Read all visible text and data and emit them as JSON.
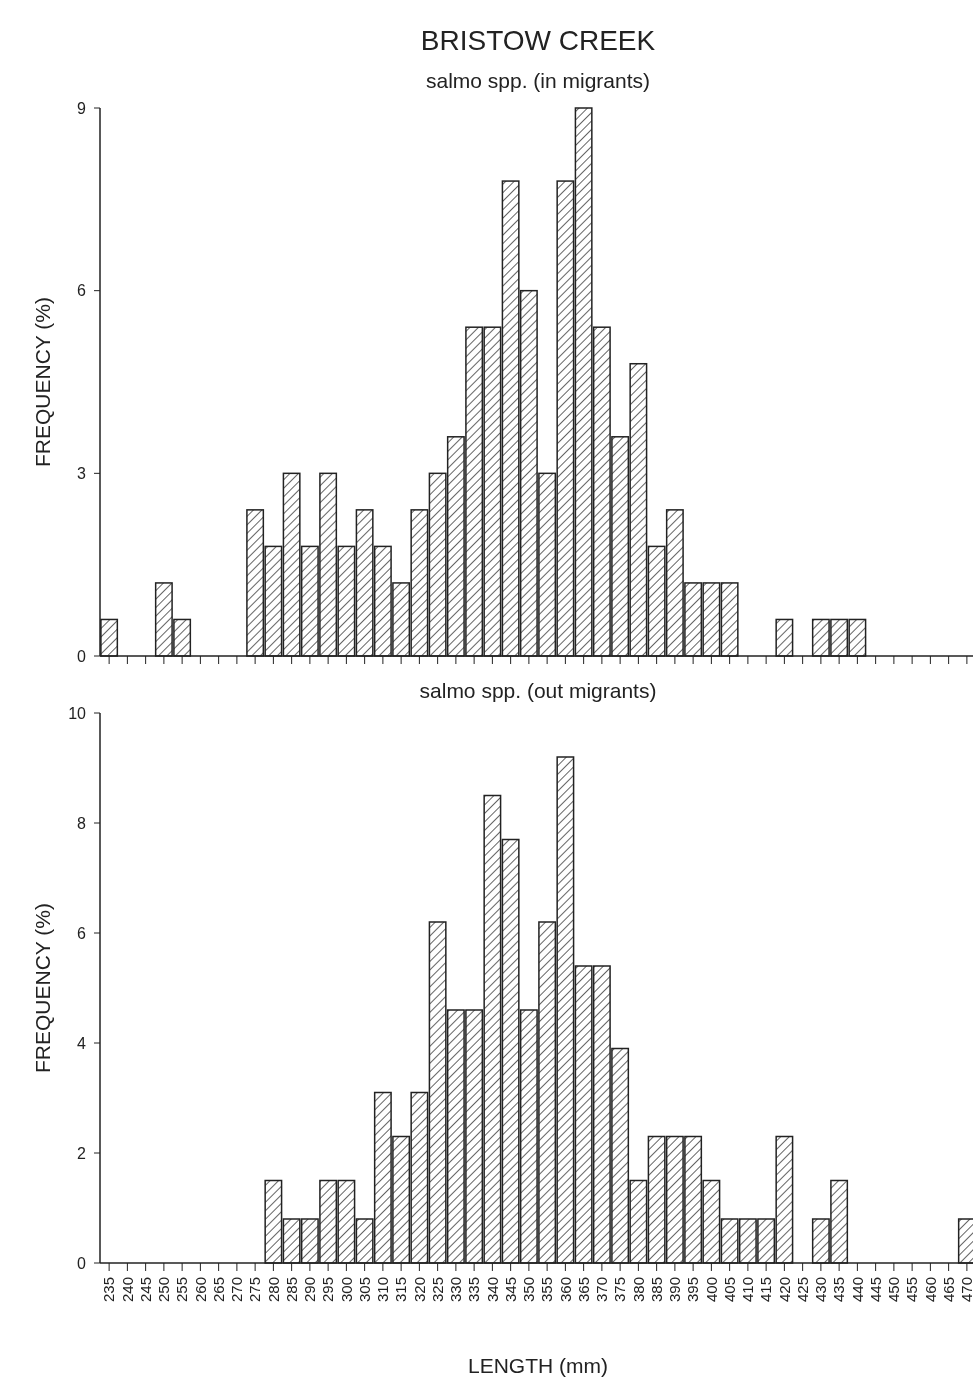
{
  "chart_data": [
    {
      "type": "bar",
      "title": "BRISTOW CREEK",
      "subtitle": "salmo spp. (in migrants)",
      "ylabel": "FREQUENCY (%)",
      "categories": [
        "235",
        "240",
        "245",
        "250",
        "255",
        "260",
        "265",
        "270",
        "275",
        "280",
        "285",
        "290",
        "295",
        "300",
        "305",
        "310",
        "315",
        "320",
        "325",
        "330",
        "335",
        "340",
        "345",
        "350",
        "355",
        "360",
        "365",
        "370",
        "375",
        "380",
        "385",
        "390",
        "395",
        "400",
        "405",
        "410",
        "415",
        "420",
        "425",
        "430",
        "435",
        "440",
        "445",
        "450",
        "455",
        "460",
        "465",
        "470"
      ],
      "values": [
        0.6,
        0,
        0,
        1.2,
        0.6,
        0,
        0,
        0,
        2.4,
        1.8,
        3.0,
        1.8,
        3.0,
        1.8,
        2.4,
        1.8,
        1.2,
        2.4,
        3.0,
        3.6,
        5.4,
        5.4,
        7.8,
        6.0,
        3.0,
        7.8,
        9.0,
        5.4,
        3.6,
        4.8,
        1.8,
        2.4,
        1.2,
        1.2,
        1.2,
        0,
        0,
        0.6,
        0,
        0.6,
        0.6,
        0.6,
        0,
        0,
        0,
        0,
        0,
        0
      ],
      "color": "#222222",
      "ylim": [
        0,
        9
      ],
      "yticks": [
        0,
        3,
        6,
        9
      ],
      "tick_labels": "y"
    },
    {
      "type": "bar",
      "title": "salmo spp. (out migrants)",
      "xlabel": "LENGTH (mm)",
      "ylabel": "FREQUENCY (%)",
      "categories": [
        "235",
        "240",
        "245",
        "250",
        "255",
        "260",
        "265",
        "270",
        "275",
        "280",
        "285",
        "290",
        "295",
        "300",
        "305",
        "310",
        "315",
        "320",
        "325",
        "330",
        "335",
        "340",
        "345",
        "350",
        "355",
        "360",
        "365",
        "370",
        "375",
        "380",
        "385",
        "390",
        "395",
        "400",
        "405",
        "410",
        "415",
        "420",
        "425",
        "430",
        "435",
        "440",
        "445",
        "450",
        "455",
        "460",
        "465",
        "470"
      ],
      "values": [
        0,
        0,
        0,
        0,
        0,
        0,
        0,
        0,
        0,
        1.5,
        0.8,
        0.8,
        1.5,
        1.5,
        0.8,
        3.1,
        2.3,
        3.1,
        6.2,
        4.6,
        4.6,
        8.5,
        7.7,
        4.6,
        6.2,
        9.2,
        5.4,
        5.4,
        3.9,
        1.5,
        2.3,
        2.3,
        2.3,
        1.5,
        0.8,
        0.8,
        0.8,
        2.3,
        0,
        0.8,
        1.5,
        0,
        0,
        0,
        0,
        0,
        0,
        0.8
      ],
      "color": "#222222",
      "ylim": [
        0,
        10
      ],
      "yticks": [
        0,
        2,
        4,
        6,
        8,
        10
      ]
    }
  ]
}
